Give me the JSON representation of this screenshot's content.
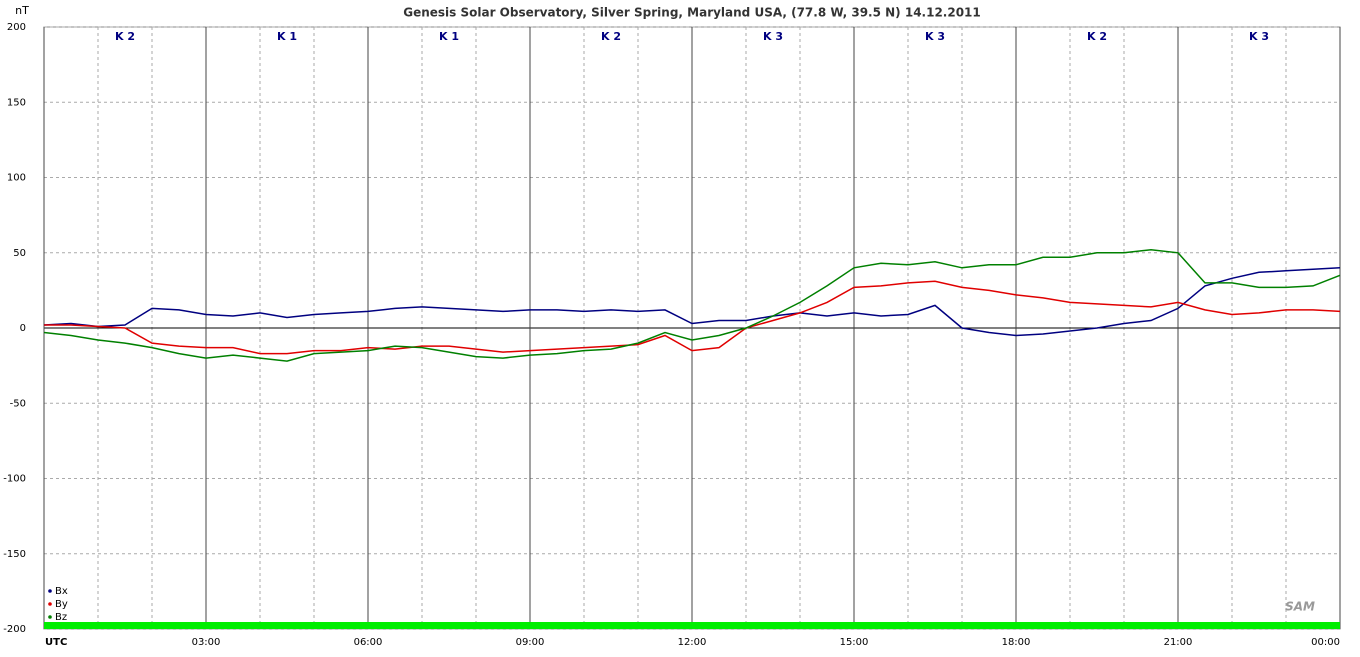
{
  "chart_data": {
    "type": "line",
    "title": "Genesis Solar Observatory, Silver Spring, Maryland USA, (77.8 W, 39.5 N)  14.12.2011",
    "y_label": "nT",
    "k_index": [
      "K 2",
      "K 1",
      "K 1",
      "K 2",
      "K 3",
      "K 3",
      "K 2",
      "K 3"
    ],
    "x": [
      0,
      0.5,
      1,
      1.5,
      2,
      2.5,
      3,
      3.5,
      4,
      4.5,
      5,
      5.5,
      6,
      6.5,
      7,
      7.5,
      8,
      8.5,
      9,
      9.5,
      10,
      10.5,
      11,
      11.5,
      12,
      12.5,
      13,
      13.5,
      14,
      14.5,
      15,
      15.5,
      16,
      16.5,
      17,
      17.5,
      18,
      18.5,
      19,
      19.5,
      20,
      20.5,
      21,
      21.5,
      22,
      22.5,
      23,
      23.5,
      24
    ],
    "series": [
      {
        "name": "Bx",
        "color": "#000080",
        "values": [
          2,
          3,
          1,
          2,
          13,
          12,
          9,
          8,
          10,
          7,
          9,
          10,
          11,
          13,
          14,
          13,
          12,
          11,
          12,
          12,
          11,
          12,
          11,
          12,
          3,
          5,
          5,
          8,
          10,
          8,
          10,
          8,
          9,
          15,
          0,
          -3,
          -5,
          -4,
          -2,
          0,
          3,
          5,
          13,
          28,
          33,
          37,
          38,
          39,
          40
        ]
      },
      {
        "name": "By",
        "color": "#e00000",
        "values": [
          2,
          2,
          1,
          0,
          -10,
          -12,
          -13,
          -13,
          -17,
          -17,
          -15,
          -15,
          -13,
          -14,
          -12,
          -12,
          -14,
          -16,
          -15,
          -14,
          -13,
          -12,
          -11,
          -5,
          -15,
          -13,
          0,
          5,
          10,
          17,
          27,
          28,
          30,
          31,
          27,
          25,
          22,
          20,
          17,
          16,
          15,
          14,
          17,
          12,
          9,
          10,
          12,
          12,
          11
        ]
      },
      {
        "name": "Bz",
        "color": "#008000",
        "values": [
          -3,
          -5,
          -8,
          -10,
          -13,
          -17,
          -20,
          -18,
          -20,
          -22,
          -17,
          -16,
          -15,
          -12,
          -13,
          -16,
          -19,
          -20,
          -18,
          -17,
          -15,
          -14,
          -10,
          -3,
          -8,
          -5,
          0,
          8,
          17,
          28,
          40,
          43,
          42,
          44,
          40,
          42,
          42,
          47,
          47,
          50,
          50,
          52,
          50,
          30,
          30,
          27,
          27,
          28,
          35
        ]
      }
    ],
    "xlim": [
      0,
      24
    ],
    "xticks": [
      {
        "value": 0,
        "label": "UTC"
      },
      {
        "value": 3,
        "label": "03:00"
      },
      {
        "value": 6,
        "label": "06:00"
      },
      {
        "value": 9,
        "label": "09:00"
      },
      {
        "value": 12,
        "label": "12:00"
      },
      {
        "value": 15,
        "label": "15:00"
      },
      {
        "value": 18,
        "label": "18:00"
      },
      {
        "value": 21,
        "label": "21:00"
      },
      {
        "value": 24,
        "label": "00:00"
      }
    ],
    "ylim": [
      -200,
      200
    ],
    "yticks": [
      200,
      150,
      100,
      50,
      0,
      -50,
      -100,
      -150,
      -200
    ],
    "grid": true,
    "legend": "bottom-left",
    "logo": "SAM"
  }
}
